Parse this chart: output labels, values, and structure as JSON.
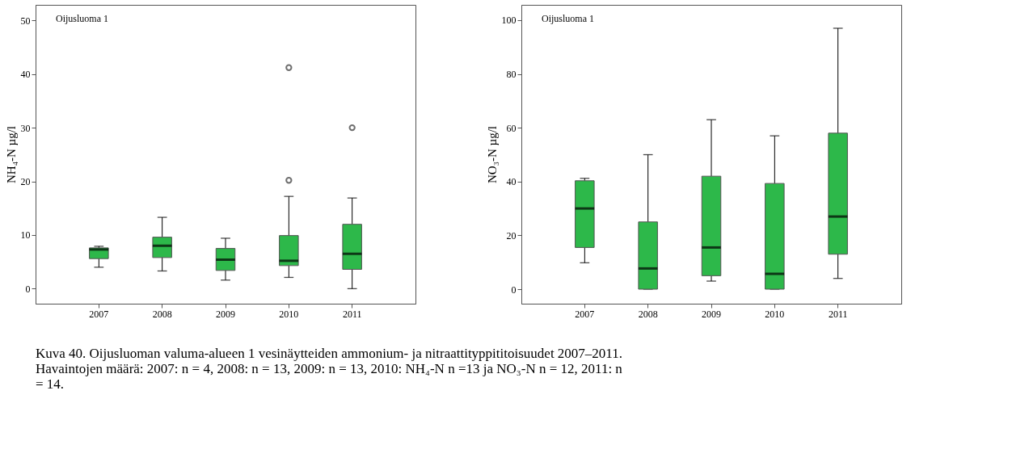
{
  "chart_data": [
    {
      "type": "box",
      "categories": [
        "2007",
        "2008",
        "2009",
        "2010",
        "2011"
      ],
      "ylabel": "NH₄-N µg/l",
      "ylim": [
        -2.8,
        52.9
      ],
      "yticks": [
        0,
        10,
        20,
        30,
        40,
        50
      ],
      "color": "#2db84a",
      "grid": false,
      "marker": "circle",
      "boxes": [
        {
          "low": 4.0,
          "q1": 5.6,
          "median": 7.3,
          "q3": 7.6,
          "high": 7.9
        },
        {
          "low": 3.3,
          "q1": 5.8,
          "median": 8.0,
          "q3": 9.6,
          "high": 13.3
        },
        {
          "low": 1.6,
          "q1": 3.4,
          "median": 5.4,
          "q3": 7.5,
          "high": 9.4
        },
        {
          "low": 2.1,
          "q1": 4.3,
          "median": 5.2,
          "q3": 9.9,
          "high": 17.2,
          "outliers": [
            20.2,
            41.2
          ]
        },
        {
          "low": 0,
          "q1": 3.6,
          "median": 6.5,
          "q3": 12.0,
          "high": 16.9,
          "outliers": [
            30
          ]
        }
      ],
      "annotations": [
        "Oijusluoma 1",
        "Kuva 40. Oijusluoman valuma-alueen 1 vesinäytteiden ammonium- ja nitraattityppititoisuudet 2007–2011.\nHavaintojen määrä: 2007: n = 4, 2008: n = 13, 2009: n = 13, 2010: NH₄-N n =13 ja NO₃-N n = 12, 2011: n\n= 14."
      ]
    },
    {
      "type": "box",
      "categories": [
        "2007",
        "2008",
        "2009",
        "2010",
        "2011"
      ],
      "ylabel": "NO₃-N µg/l",
      "ylim": [
        -5.4,
        105.7
      ],
      "yticks": [
        0,
        20,
        40,
        60,
        80,
        100
      ],
      "color": "#2db84a",
      "grid": false,
      "marker": "circle",
      "boxes": [
        {
          "low": 9.8,
          "q1": 15.5,
          "median": 30,
          "q3": 40.3,
          "high": 41.2
        },
        {
          "low": 0,
          "q1": 0,
          "median": 7.7,
          "q3": 25,
          "high": 50
        },
        {
          "low": 3,
          "q1": 5,
          "median": 15.5,
          "q3": 42,
          "high": 63
        },
        {
          "low": 0,
          "q1": 0,
          "median": 5.7,
          "q3": 39.3,
          "high": 57
        },
        {
          "low": 4,
          "q1": 13,
          "median": 27,
          "q3": 58,
          "high": 97
        }
      ],
      "annotations": [
        "Oijusluoma 1"
      ]
    }
  ]
}
